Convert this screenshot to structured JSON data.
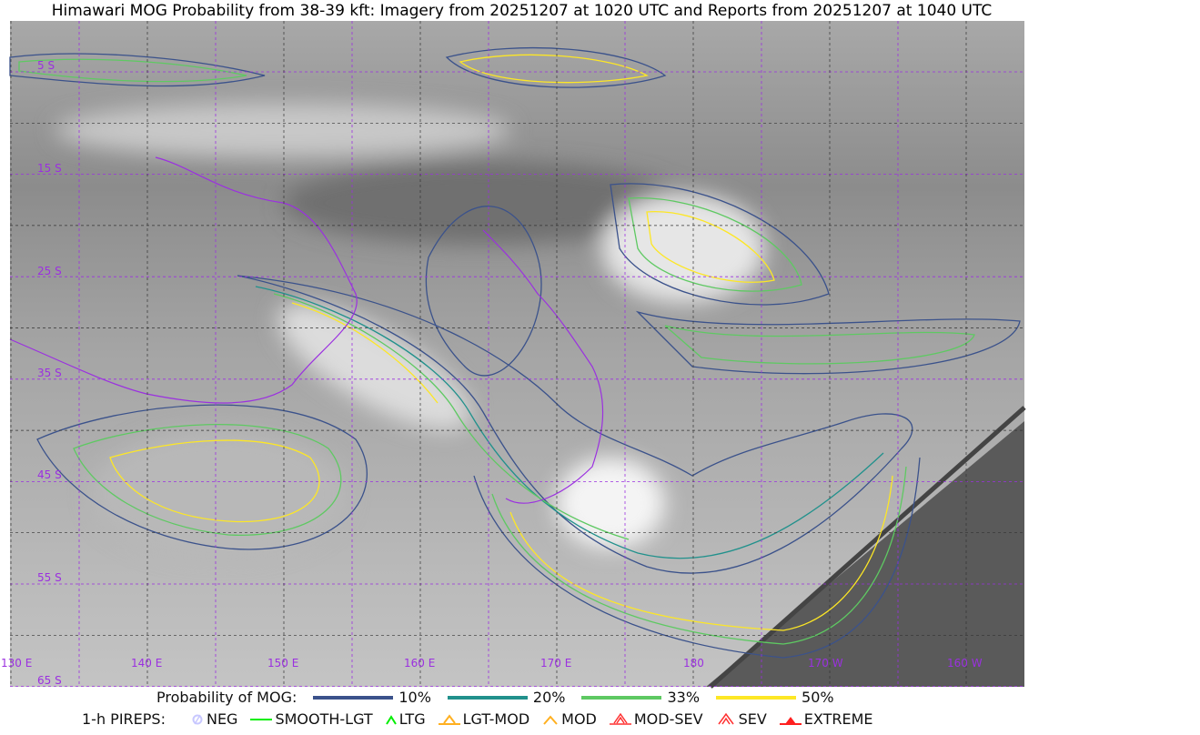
{
  "title": "Himawari MOG Probability from 38-39 kft: Imagery from 20251207 at 1020 UTC and Reports from 20251207 at 1040 UTC",
  "map": {
    "lon_labels": [
      "130 E",
      "140 E",
      "150 E",
      "160 E",
      "170 E",
      "180",
      "170 W",
      "160 W"
    ],
    "lat_labels": [
      "5 S",
      "15 S",
      "25 S",
      "35 S",
      "45 S",
      "55 S",
      "65 S"
    ],
    "colors": {
      "gridline": "#9b30e0",
      "coastline": "#9b30e0",
      "nodata": "#5a5a5a"
    }
  },
  "legend_probability": {
    "label": "Probability of MOG:",
    "items": [
      {
        "label": "10%",
        "color": "#3b528b"
      },
      {
        "label": "20%",
        "color": "#21918c"
      },
      {
        "label": "33%",
        "color": "#5ec962"
      },
      {
        "label": "50%",
        "color": "#fde725"
      }
    ]
  },
  "legend_pireps": {
    "label": "1-h PIREPS:",
    "items": [
      {
        "label": "NEG",
        "icon": "neg-circle-icon",
        "color": "#c8c8ff"
      },
      {
        "label": "SMOOTH-LGT",
        "icon": "dash-icon",
        "color": "#00ee00"
      },
      {
        "label": "LTG",
        "icon": "caret-icon",
        "color": "#00ee00"
      },
      {
        "label": "LGT-MOD",
        "icon": "caret-bar-icon",
        "color": "#ffb020"
      },
      {
        "label": "MOD",
        "icon": "caret-icon",
        "color": "#ffb020"
      },
      {
        "label": "MOD-SEV",
        "icon": "double-caret-bar-icon",
        "color": "#ff3030"
      },
      {
        "label": "SEV",
        "icon": "double-caret-icon",
        "color": "#ff3030"
      },
      {
        "label": "EXTREME",
        "icon": "filled-triangle-icon",
        "color": "#ff2020"
      }
    ]
  }
}
